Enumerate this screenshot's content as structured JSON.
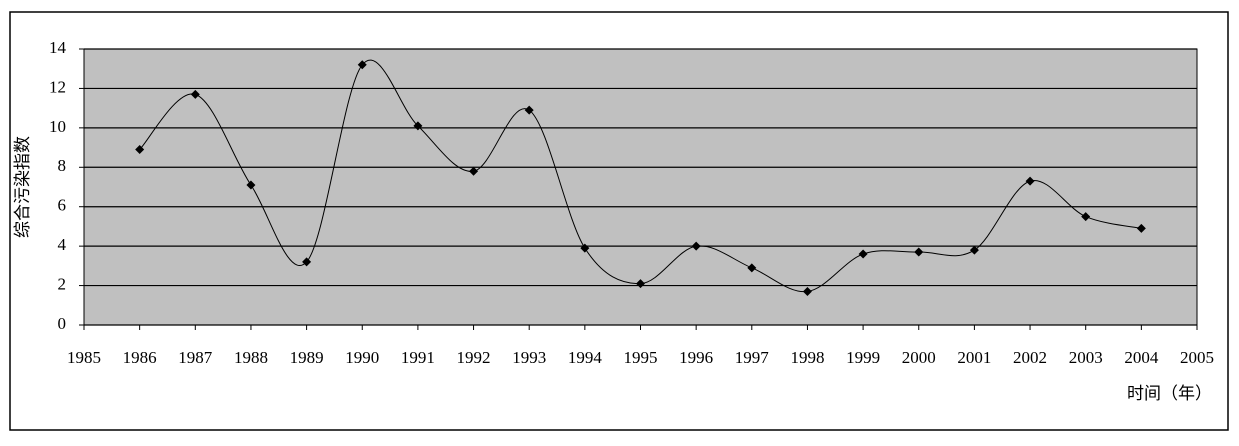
{
  "chart_data": {
    "type": "line",
    "smooth": true,
    "y_label": "综合污染指数",
    "x_label": "时间（年）",
    "x": [
      1986,
      1987,
      1988,
      1989,
      1990,
      1991,
      1992,
      1993,
      1994,
      1995,
      1996,
      1997,
      1998,
      1999,
      2000,
      2001,
      2002,
      2003,
      2004
    ],
    "series": [
      {
        "color": "#000000",
        "values": [
          8.9,
          11.7,
          7.1,
          3.2,
          13.2,
          10.1,
          7.8,
          10.9,
          3.9,
          2.1,
          4.0,
          2.9,
          1.7,
          3.6,
          3.7,
          3.8,
          7.3,
          5.5,
          4.9
        ]
      }
    ],
    "xlim": [
      1985,
      2005
    ],
    "xticks": [
      1985,
      1986,
      1987,
      1988,
      1989,
      1990,
      1991,
      1992,
      1993,
      1994,
      1995,
      1996,
      1997,
      1998,
      1999,
      2000,
      2001,
      2002,
      2003,
      2004,
      2005
    ],
    "ylim": [
      0,
      14
    ],
    "yticks": [
      0,
      2,
      4,
      6,
      8,
      10,
      12,
      14
    ],
    "grid": true,
    "plot_background": "#c0c0c0"
  }
}
